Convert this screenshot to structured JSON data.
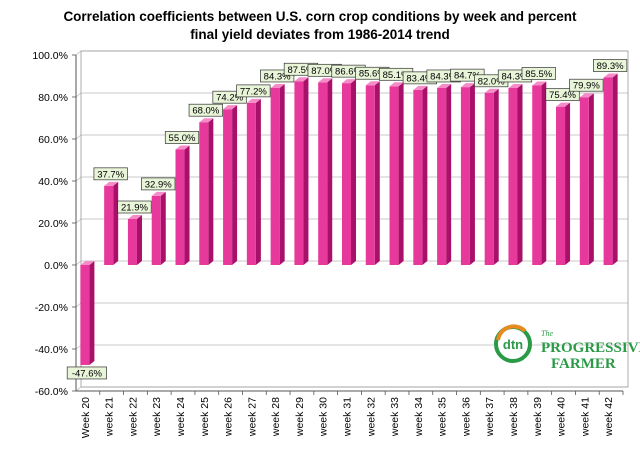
{
  "chart_data": {
    "type": "bar",
    "title_lines": [
      "Correlation coefficients between U.S. corn crop conditions by week and percent",
      "final yield deviates  from 1986-2014 trend"
    ],
    "xlabel": "",
    "ylabel": "",
    "categories": [
      "Week 20",
      "week 21",
      "week 22",
      "week 23",
      "week 24",
      "week 25",
      "week 26",
      "week 27",
      "week 28",
      "week 29",
      "week 30",
      "week 31",
      "week 32",
      "week 33",
      "week 34",
      "week 35",
      "week 36",
      "week 37",
      "week 38",
      "week 39",
      "week 40",
      "week 41",
      "week 42"
    ],
    "values": [
      -47.6,
      37.7,
      21.9,
      32.9,
      55.0,
      68.0,
      74.2,
      77.2,
      84.3,
      87.5,
      87.0,
      86.6,
      85.6,
      85.1,
      83.4,
      84.3,
      84.7,
      82.0,
      84.3,
      85.5,
      75.4,
      79.9,
      89.3
    ],
    "data_labels": [
      "-47.6%",
      "37.7%",
      "21.9%",
      "32.9%",
      "55.0%",
      "68.0%",
      "74.2%",
      "77.2%",
      "84.3%",
      "87.5%",
      "87.0%",
      "86.6%",
      "85.6%",
      "85.1%",
      "83.4%",
      "84.3%",
      "84.7%",
      "82.0%",
      "84.3%",
      "85.5%",
      "75.4%",
      "79.9%",
      "89.3%"
    ],
    "ylim": [
      -60,
      100
    ],
    "yticks": [
      -60,
      -40,
      -20,
      0,
      20,
      40,
      60,
      80,
      100
    ],
    "ytick_labels": [
      "-60.0%",
      "-40.0%",
      "-20.0%",
      "0.0%",
      "20.0%",
      "40.0%",
      "60.0%",
      "80.0%",
      "100.0%"
    ],
    "grid": true,
    "legend": "none",
    "colors": {
      "bar_front": "#e6399b",
      "bar_side": "#a8106a",
      "bar_top": "#f58cc8",
      "grid": "#b9b9b9",
      "label_bg": "#e8f5d8"
    }
  },
  "logo": {
    "badge_text": "dtn",
    "the_text": "The",
    "line1": "PROGRESSIVE",
    "line2": "FARMER",
    "colors": {
      "ring": "#2a9a47",
      "arc": "#e98a1e",
      "text": "#2a9a47"
    }
  }
}
